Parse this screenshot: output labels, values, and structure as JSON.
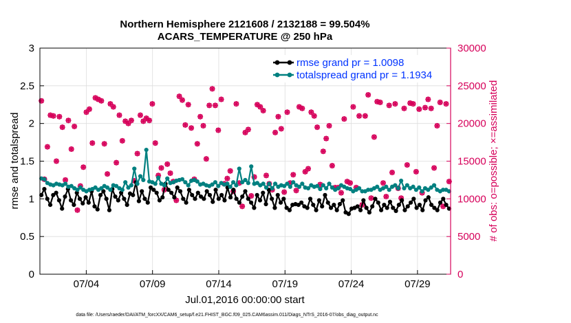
{
  "chart_data": {
    "type": "line",
    "title_line1": "Northern Hemisphere 2121608 / 2132188 = 99.504%",
    "title_line2": "ACARS_TEMPERATURE @ 250 hPa",
    "xlabel": "Jul.01,2016 00:00:00 start",
    "ylabel_left": "rmse and totalspread",
    "ylabel_right": "# of obs: o=possible; ×=assimilated",
    "footnote": "data file: /Users/raeder/DAI/ATM_forcXX/CAM6_setup/f.e21.FHIST_BGC.f09_025.CAM6assim.011/Diags_NTrS_2016-07/obs_diag_output.nc",
    "xlim": [
      0.5,
      31.5
    ],
    "ylim_left": [
      0,
      3
    ],
    "ylim_right": [
      0,
      30000
    ],
    "x_ticks": [
      4,
      9,
      14,
      19,
      24,
      29
    ],
    "x_tick_labels": [
      "07/04",
      "07/09",
      "07/14",
      "07/19",
      "07/24",
      "07/29"
    ],
    "y_left_ticks": [
      0,
      0.5,
      1,
      1.5,
      2,
      2.5,
      3
    ],
    "y_left_tick_labels": [
      "0",
      "0.5",
      "1",
      "1.5",
      "2",
      "2.5",
      "3"
    ],
    "y_right_ticks": [
      0,
      5000,
      10000,
      15000,
      20000,
      25000,
      30000
    ],
    "y_right_tick_labels": [
      "0",
      "5000",
      "10000",
      "15000",
      "20000",
      "25000",
      "30000"
    ],
    "colors": {
      "rmse": "#000000",
      "spread": "#008080",
      "obs": "#d6005a",
      "legend_text": "#0033ff"
    },
    "series": [
      {
        "name": "rmse grand pr = 1.0098",
        "values": [
          1.05,
          1.13,
          1.0,
          0.92,
          1.05,
          1.08,
          0.98,
          0.87,
          1.03,
          1.13,
          0.98,
          0.92,
          1.08,
          1.0,
          0.94,
          1.02,
          0.95,
          1.1,
          0.9,
          0.86,
          1.05,
          1.1,
          1.0,
          0.85,
          1.13,
          1.03,
          0.98,
          1.08,
          1.0,
          0.92,
          1.07,
          1.05,
          1.22,
          0.97,
          1.1,
          1.0,
          0.95,
          1.15,
          1.12,
          1.08,
          0.98,
          1.02,
          1.2,
          1.12,
          1.08,
          1.02,
          1.15,
          1.1,
          1.0,
          0.95,
          1.12,
          1.05,
          1.0,
          1.08,
          1.03,
          1.0,
          1.1,
          1.05,
          0.96,
          1.12,
          1.0,
          1.05,
          0.98,
          1.15,
          1.02,
          1.12,
          1.0,
          0.95,
          1.03,
          1.1,
          1.0,
          0.95,
          0.88,
          1.05,
          0.98,
          1.08,
          0.93,
          1.12,
          1.0,
          0.88,
          1.05,
          0.95,
          1.0,
          0.88,
          0.85,
          0.92,
          0.93,
          0.92,
          0.95,
          0.9,
          0.88,
          1.0,
          0.92,
          0.85,
          0.98,
          0.9,
          1.05,
          0.95,
          0.88,
          0.92,
          0.85,
          0.93,
          0.98,
          0.82,
          0.8,
          0.87,
          0.88,
          0.9,
          0.85,
          0.98,
          0.88,
          0.82,
          0.9,
          1.0,
          0.95,
          0.85,
          0.92,
          0.88,
          0.96,
          0.88,
          0.84,
          0.92,
          0.98,
          0.85,
          0.9,
          0.95,
          1.0,
          0.88,
          0.92,
          0.85,
          0.98,
          1.02,
          0.92,
          0.88,
          0.85,
          0.95,
          1.0,
          0.92,
          0.87
        ]
      },
      {
        "name": "totalspread grand pr = 1.1934",
        "values": [
          1.27,
          1.26,
          1.21,
          1.19,
          1.18,
          1.2,
          1.19,
          1.18,
          1.2,
          1.16,
          1.17,
          1.14,
          1.12,
          1.15,
          1.12,
          1.1,
          1.12,
          1.13,
          1.15,
          1.12,
          1.14,
          1.17,
          1.15,
          1.12,
          1.18,
          1.17,
          1.14,
          1.12,
          1.22,
          1.15,
          1.18,
          1.4,
          1.2,
          1.3,
          1.25,
          1.65,
          1.23,
          1.22,
          1.2,
          1.28,
          1.2,
          1.18,
          1.27,
          1.21,
          1.22,
          1.24,
          1.25,
          1.26,
          1.22,
          1.18,
          1.24,
          1.25,
          1.23,
          1.19,
          1.2,
          1.18,
          1.17,
          1.19,
          1.22,
          1.17,
          1.21,
          1.19,
          1.2,
          1.16,
          1.22,
          1.18,
          1.4,
          1.22,
          1.25,
          1.21,
          1.43,
          1.2,
          1.21,
          1.18,
          1.2,
          1.15,
          1.2,
          1.14,
          1.2,
          1.16,
          1.18,
          1.17,
          1.2,
          1.16,
          1.22,
          1.18,
          1.16,
          1.2,
          1.15,
          1.14,
          1.18,
          1.16,
          1.17,
          1.13,
          1.18,
          1.14,
          1.2,
          1.15,
          1.12,
          1.14,
          1.18,
          1.16,
          1.14,
          1.13,
          1.1,
          1.12,
          1.14,
          1.1,
          1.1,
          1.12,
          1.12,
          1.14,
          1.16,
          1.12,
          1.14,
          1.16,
          1.12,
          1.16,
          1.18,
          1.14,
          1.24,
          1.14,
          1.18,
          1.14,
          1.16,
          1.12,
          1.15,
          1.1,
          1.14,
          1.12,
          1.15,
          1.18,
          1.12,
          1.1,
          1.12,
          1.12,
          1.1
        ]
      }
    ],
    "obs_count": [
      23000,
      12600,
      16900,
      21100,
      21000,
      15000,
      20900,
      19500,
      12500,
      20400,
      16600,
      19600,
      8500,
      11700,
      14200,
      21500,
      21900,
      17400,
      23400,
      23200,
      23000,
      17300,
      13300,
      22600,
      22200,
      14800,
      21100,
      17700,
      20300,
      20000,
      20400,
      12400,
      16000,
      21100,
      20300,
      20700,
      20400,
      22600,
      17400,
      13100,
      14100,
      11200,
      14600,
      13400,
      12300,
      9800,
      23600,
      23100,
      19800,
      22500,
      19400,
      12600,
      17300,
      20900,
      19700,
      15300,
      22400,
      24600,
      22400,
      19100,
      23200,
      12000,
      12700,
      13700,
      11000,
      22600,
      12100,
      9000,
      18800,
      19200,
      10400,
      12900,
      22500,
      22200,
      21700,
      13100,
      12000,
      11200,
      18800,
      20900,
      19300,
      10900,
      21500,
      12100,
      13200,
      11100,
      22200,
      22000,
      13600,
      14000,
      21500,
      21000,
      19500,
      11900,
      16300,
      18000,
      19700,
      14400,
      11500,
      11500,
      10800,
      20600,
      12300,
      12100,
      22200,
      11500,
      21000,
      9200,
      21000,
      23800,
      10100,
      18200,
      22900,
      22800,
      12100,
      10300,
      22400,
      13500,
      22600,
      11400,
      10100,
      22000,
      14500,
      22700,
      22600,
      13600,
      21900,
      10800,
      22100,
      23200,
      22000,
      14100,
      19700,
      22800,
      9000,
      22600,
      12300
    ]
  }
}
